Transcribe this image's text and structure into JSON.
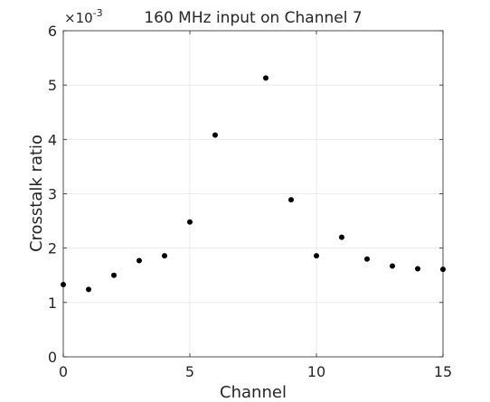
{
  "chart_data": {
    "type": "scatter",
    "title": "160 MHz input on Channel 7",
    "xlabel": "Channel",
    "ylabel": "Crosstalk ratio",
    "exponent_label": "×10",
    "exponent_power": "-3",
    "xlim": [
      0,
      15
    ],
    "ylim": [
      0,
      6
    ],
    "x_ticks": [
      0,
      5,
      10,
      15
    ],
    "y_ticks": [
      0,
      1,
      2,
      3,
      4,
      5,
      6
    ],
    "grid": true,
    "points": [
      {
        "x": 0,
        "y": 1.33
      },
      {
        "x": 1,
        "y": 1.24
      },
      {
        "x": 2,
        "y": 1.5
      },
      {
        "x": 3,
        "y": 1.77
      },
      {
        "x": 4,
        "y": 1.86
      },
      {
        "x": 5,
        "y": 2.48
      },
      {
        "x": 6,
        "y": 4.08
      },
      {
        "x": 8,
        "y": 5.13
      },
      {
        "x": 9,
        "y": 2.89
      },
      {
        "x": 10,
        "y": 1.86
      },
      {
        "x": 11,
        "y": 2.2
      },
      {
        "x": 12,
        "y": 1.8
      },
      {
        "x": 13,
        "y": 1.67
      },
      {
        "x": 14,
        "y": 1.62
      },
      {
        "x": 15,
        "y": 1.61
      }
    ],
    "marker_color": "#000000"
  }
}
